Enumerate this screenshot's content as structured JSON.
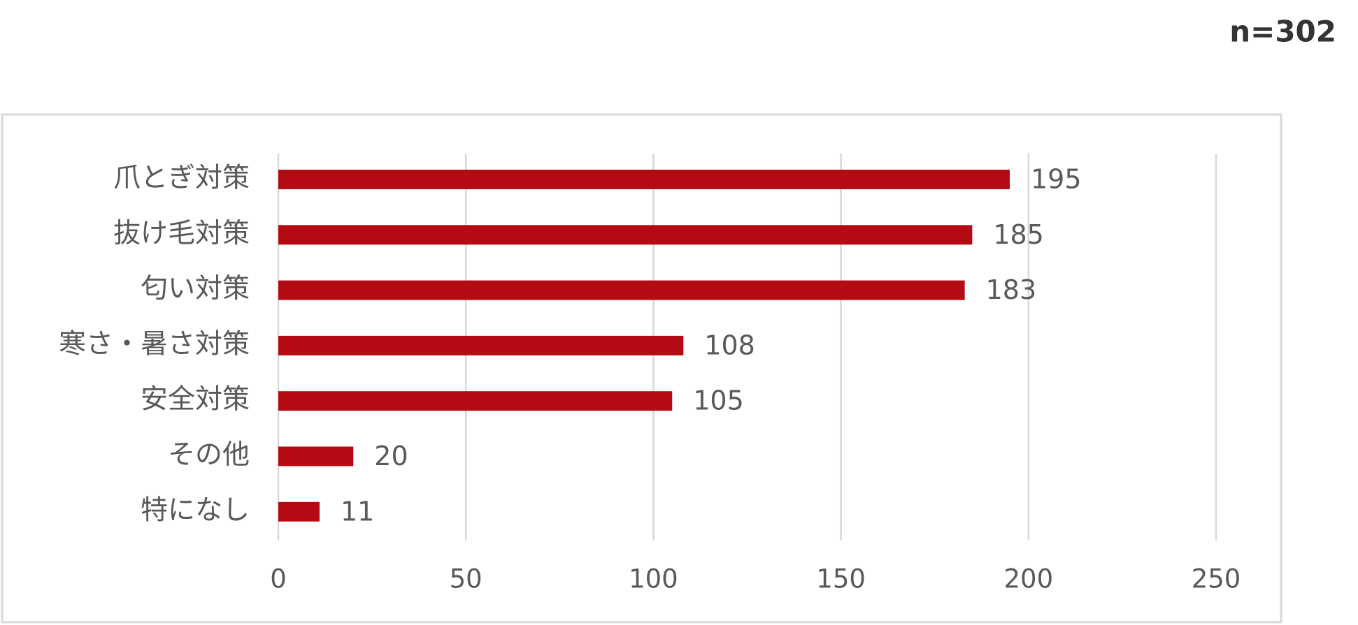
{
  "chart_data": {
    "type": "bar",
    "orientation": "horizontal",
    "subtitle": "n=302",
    "categories": [
      "爪とぎ対策",
      "抜け毛対策",
      "匂い対策",
      "寒さ・暑さ対策",
      "安全対策",
      "その他",
      "特になし"
    ],
    "values": [
      195,
      185,
      183,
      108,
      105,
      20,
      11
    ],
    "color": "#b30a14",
    "xlim": [
      0,
      250
    ],
    "xticks": [
      0,
      50,
      100,
      150,
      200,
      250
    ],
    "grid": true
  }
}
